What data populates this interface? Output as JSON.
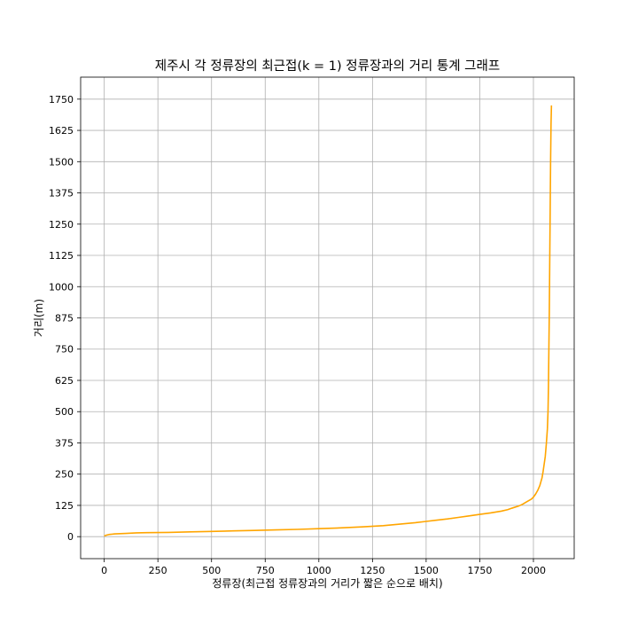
{
  "chart_data": {
    "type": "line",
    "title": "제주시 각 정류장의 최근접(k = 1) 정류장과의 거리 통계 그래프",
    "xlabel": "정류장(최근접 정류장과의 거리가 짧은 순으로 배치)",
    "ylabel": "거리(m)",
    "xlim": [
      -110,
      2190
    ],
    "ylim": [
      -88,
      1838
    ],
    "xticks": [
      0,
      250,
      500,
      750,
      1000,
      1250,
      1500,
      1750,
      2000
    ],
    "yticks": [
      0,
      125,
      250,
      375,
      500,
      625,
      750,
      875,
      1000,
      1125,
      1250,
      1375,
      1500,
      1625,
      1750
    ],
    "grid": true,
    "line_color": "#ffa500",
    "series": [
      {
        "x": [
          0,
          10,
          25,
          50,
          100,
          150,
          200,
          300,
          400,
          500,
          600,
          700,
          800,
          900,
          1000,
          1100,
          1200,
          1300,
          1350,
          1400,
          1450,
          1500,
          1550,
          1600,
          1650,
          1700,
          1750,
          1800,
          1850,
          1880,
          1900,
          1930,
          1950,
          1970,
          1990,
          2000,
          2010,
          2020,
          2030,
          2040,
          2045,
          2050,
          2055,
          2060,
          2065,
          2068,
          2070,
          2072,
          2074,
          2076,
          2078,
          2080,
          2082,
          2084
        ],
        "y": [
          3,
          6,
          9,
          11,
          13,
          15,
          16,
          17,
          19,
          21,
          23,
          25,
          27,
          29,
          32,
          35,
          39,
          44,
          48,
          52,
          56,
          61,
          66,
          71,
          77,
          83,
          89,
          95,
          102,
          108,
          114,
          122,
          130,
          140,
          150,
          158,
          170,
          185,
          205,
          235,
          260,
          290,
          320,
          370,
          430,
          500,
          600,
          750,
          900,
          1100,
          1300,
          1500,
          1650,
          1725
        ]
      }
    ]
  }
}
